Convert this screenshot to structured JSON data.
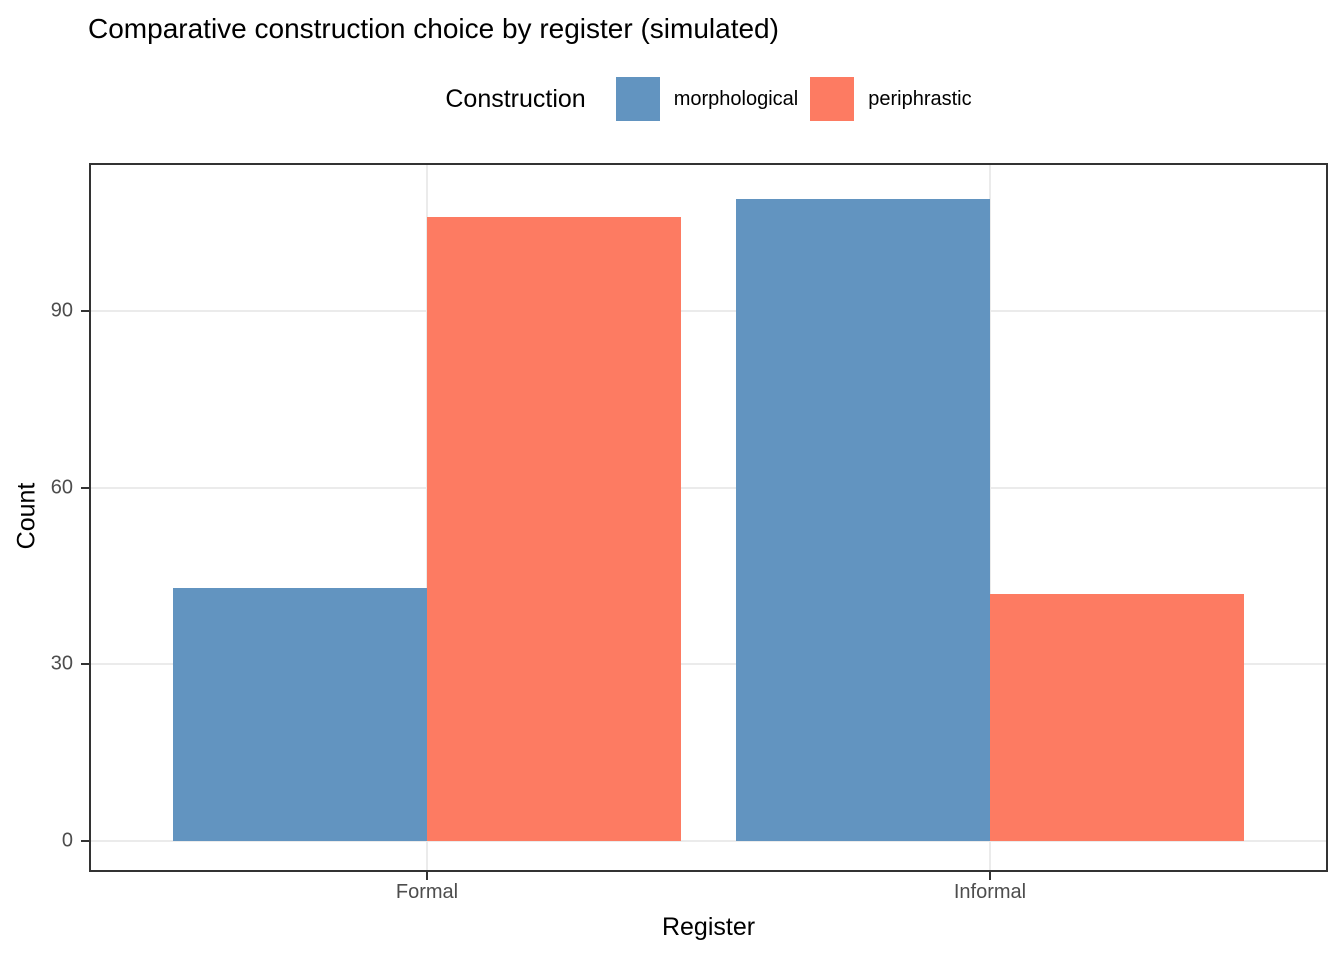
{
  "title": "Comparative construction choice by register (simulated)",
  "legend": {
    "title": "Construction",
    "position": "top",
    "items": [
      {
        "label": "morphological",
        "color": "#6294C0"
      },
      {
        "label": "periphrastic",
        "color": "#FD7B62"
      }
    ]
  },
  "x_axis": {
    "title": "Register",
    "ticks": [
      "Formal",
      "Informal"
    ]
  },
  "y_axis": {
    "title": "Count",
    "ticks": [
      0,
      30,
      60,
      90
    ]
  },
  "colors": {
    "morphological": "#6294C0",
    "periphrastic": "#FD7B62",
    "gridline": "#EBEBEB",
    "panel_border": "#333333",
    "tick_label": "#4D4D4D"
  },
  "chart_data": {
    "type": "bar",
    "grouping": "dodged",
    "title": "Comparative construction choice by register (simulated)",
    "xlabel": "Register",
    "ylabel": "Count",
    "categories": [
      "Formal",
      "Informal"
    ],
    "series": [
      {
        "name": "morphological",
        "color": "#6294C0",
        "values": [
          43,
          109
        ]
      },
      {
        "name": "periphrastic",
        "color": "#FD7B62",
        "values": [
          106,
          42
        ]
      }
    ],
    "ylim": [
      0,
      115
    ],
    "yticks": [
      0,
      30,
      60,
      90
    ],
    "grid": "major-only",
    "legend_position": "top-center"
  }
}
